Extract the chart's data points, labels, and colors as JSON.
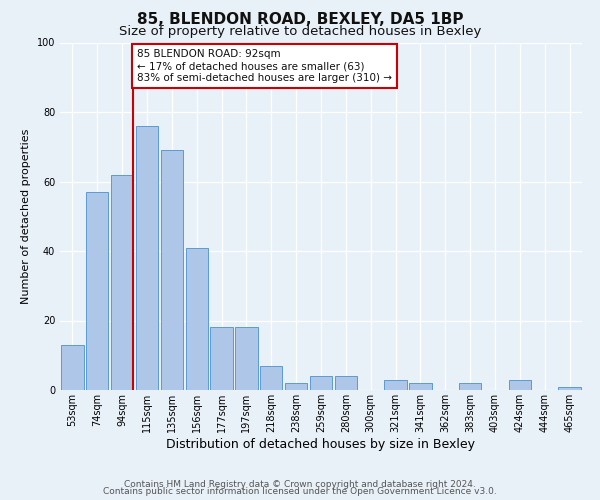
{
  "title": "85, BLENDON ROAD, BEXLEY, DA5 1BP",
  "subtitle": "Size of property relative to detached houses in Bexley",
  "xlabel": "Distribution of detached houses by size in Bexley",
  "ylabel": "Number of detached properties",
  "bin_labels": [
    "53sqm",
    "74sqm",
    "94sqm",
    "115sqm",
    "135sqm",
    "156sqm",
    "177sqm",
    "197sqm",
    "218sqm",
    "238sqm",
    "259sqm",
    "280sqm",
    "300sqm",
    "321sqm",
    "341sqm",
    "362sqm",
    "383sqm",
    "403sqm",
    "424sqm",
    "444sqm",
    "465sqm"
  ],
  "bar_values": [
    13,
    57,
    62,
    76,
    69,
    41,
    18,
    18,
    7,
    2,
    4,
    4,
    0,
    3,
    2,
    0,
    2,
    0,
    3,
    0,
    1
  ],
  "bar_color": "#aec6e8",
  "bar_edge_color": "#5b9bd5",
  "background_color": "#e8f0f8",
  "grid_color": "#ffffff",
  "vline_x_index": 2,
  "vline_color": "#cc0000",
  "annotation_text": "85 BLENDON ROAD: 92sqm\n← 17% of detached houses are smaller (63)\n83% of semi-detached houses are larger (310) →",
  "annotation_box_color": "#ffffff",
  "annotation_box_edge_color": "#cc0000",
  "ylim": [
    0,
    100
  ],
  "footer1": "Contains HM Land Registry data © Crown copyright and database right 2024.",
  "footer2": "Contains public sector information licensed under the Open Government Licence v3.0.",
  "title_fontsize": 11,
  "subtitle_fontsize": 9.5,
  "xlabel_fontsize": 9,
  "ylabel_fontsize": 8,
  "tick_fontsize": 7,
  "footer_fontsize": 6.5,
  "annotation_fontsize": 7.5
}
